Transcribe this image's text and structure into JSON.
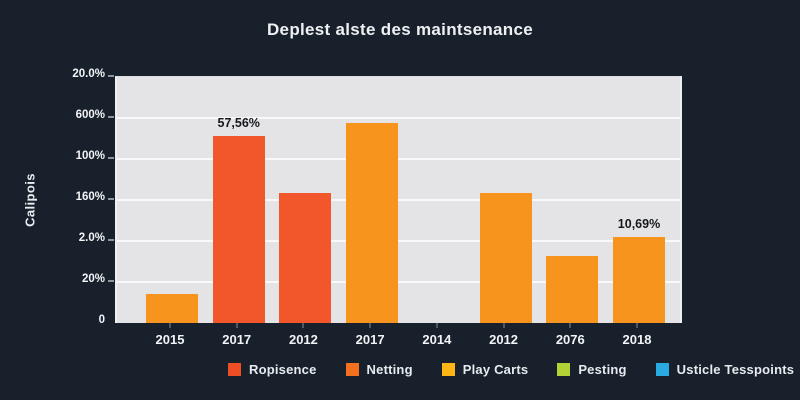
{
  "title": "Deplest alste des maintsenance",
  "chart_data": {
    "type": "bar",
    "title": "Deplest alste des maintsenance",
    "xlabel": "",
    "ylabel": "Calipois",
    "categories": [
      "2015",
      "2017",
      "2012",
      "2017",
      "2014",
      "2012",
      "2076",
      "2018"
    ],
    "values_percent_of_axis": [
      11.8,
      76.0,
      52.8,
      81.3,
      0,
      52.8,
      27.2,
      35.0
    ],
    "bar_colors": [
      "#f7941e",
      "#f2562b",
      "#f2562b",
      "#f7941e",
      "#f7941e",
      "#f7941e",
      "#f7941e",
      "#f7941e"
    ],
    "y_tick_labels_bottom_to_top": [
      "0",
      "20%",
      "2.0%",
      "160%",
      "100%",
      "600%",
      "20.0%"
    ],
    "grid": true,
    "plot_background": "#e4e4e7",
    "page_background": "#18212b",
    "legend_position": "bottom",
    "annotations": [
      {
        "category_index": 1,
        "text": "57,56%"
      },
      {
        "category_index": 7,
        "text": "10,69%"
      }
    ],
    "legend": [
      {
        "label": "Ropisence",
        "color": "#ee4e23"
      },
      {
        "label": "Netting",
        "color": "#f37021"
      },
      {
        "label": "Play Carts",
        "color": "#fdb515"
      },
      {
        "label": "Pesting",
        "color": "#b2d235"
      },
      {
        "label": "Usticle Tesspoints",
        "color": "#29abe2"
      }
    ]
  }
}
